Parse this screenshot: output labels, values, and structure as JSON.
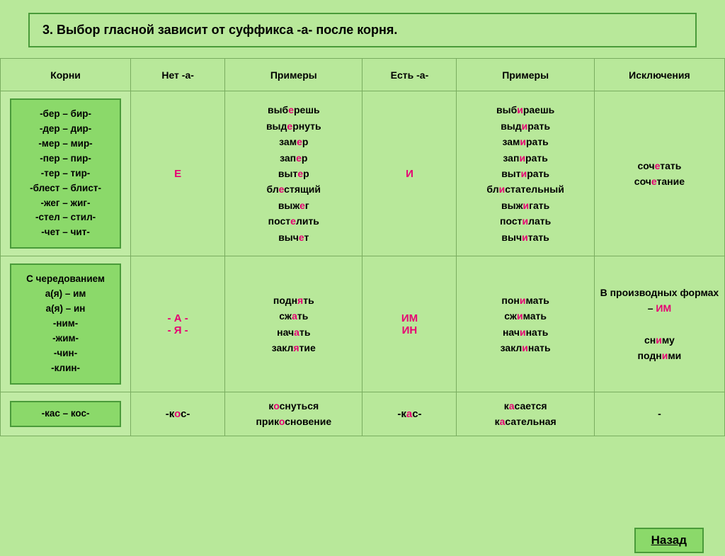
{
  "title": "3. Выбор гласной зависит от суффикса -а- после корня.",
  "headers": [
    "Корни",
    "Нет -а-",
    "Примеры",
    "Есть -а-",
    "Примеры",
    "Исключения"
  ],
  "row1": {
    "roots": "-бер – бир-\n-дер – дир-\n-мер – мир-\n-пер – пир-\n-тер – тир-\n-блест – блист-\n-жег – жиг-\n-стел – стил-\n-чет – чит-",
    "exNo": [
      "выб|е|решь",
      "выд|е|рнуть",
      "зам|е|р",
      "зап|е|р",
      "выт|е|р",
      "бл|е|стящий",
      "выж|е|г",
      "пост|е|лить",
      "выч|е|т"
    ],
    "exYes": [
      "выб|и|раешь",
      "выд|и|рать",
      "зам|и|рать",
      "зап|и|рать",
      "выт|и|рать",
      "бл|и|стательный",
      "выж|и|гать",
      "пост|и|лать",
      "выч|и|тать"
    ]
  },
  "row2": {
    "roots": "С чередованием\nа(я) – им\nа(я) – ин\n-ним-\n-жим-\n-чин-\n-клин-",
    "exNo": [
      "подн|я|ть",
      "сж|а|ть",
      "нач|а|ть",
      "закл|я|тие"
    ],
    "exYes": [
      "пон|и|мать",
      "сж|и|мать",
      "нач|и|нать",
      "закл|и|нать"
    ]
  },
  "row3": {
    "roots": "-кас – кос-",
    "noA": "-к|о|с-",
    "exNo": [
      "к|о|снуться",
      "прик|о|сновение"
    ],
    "yesA": "-к|а|с-",
    "exYes": [
      "к|а|сается",
      "к|а|сательная"
    ]
  },
  "back": "Назад"
}
